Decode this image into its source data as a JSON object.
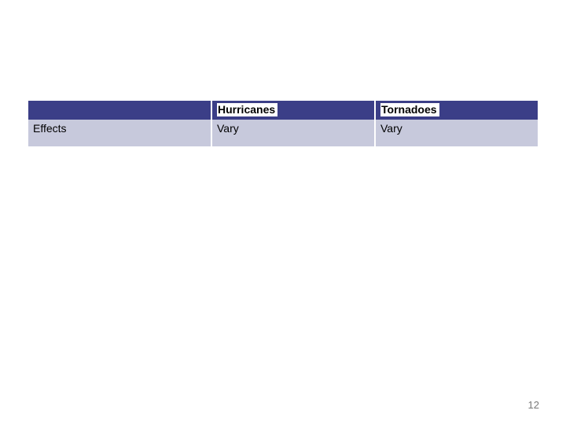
{
  "table": {
    "columns": [
      "",
      "Hurricanes",
      "Tornadoes"
    ],
    "rows": [
      {
        "label": "Effects",
        "cells": [
          "Vary",
          "Vary"
        ]
      }
    ],
    "header_bg": "#3b3e87",
    "header_label_bg": "#ffffff",
    "header_label_color": "#000000",
    "row_bg": "#c7c9dc",
    "row_color": "#000000",
    "col_widths_pct": [
      36,
      32,
      32
    ],
    "font_size_pt": 11,
    "border_color": "#ffffff"
  },
  "page_number": "12"
}
